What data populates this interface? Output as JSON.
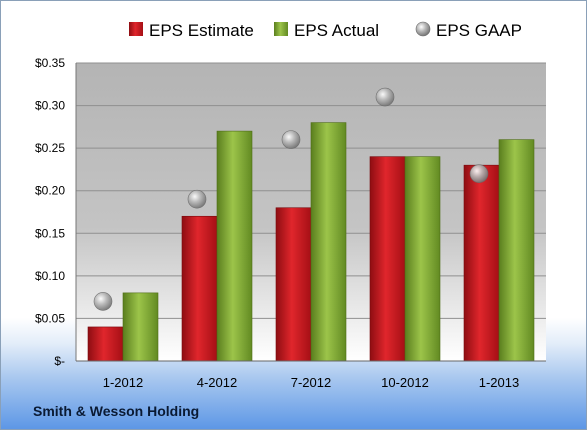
{
  "chart_data": {
    "type": "bar",
    "categories": [
      "1-2012",
      "4-2012",
      "7-2012",
      "10-2012",
      "1-2013"
    ],
    "series": [
      {
        "name": "EPS Estimate",
        "values": [
          0.04,
          0.17,
          0.18,
          0.24,
          0.23
        ],
        "color": "#c0141c"
      },
      {
        "name": "EPS Actual",
        "values": [
          0.08,
          0.27,
          0.28,
          0.24,
          0.26
        ],
        "color": "#78a12e"
      },
      {
        "name": "EPS GAAP",
        "values": [
          0.07,
          0.19,
          0.26,
          0.31,
          0.22
        ],
        "color": "#9a9a9a",
        "marker": "circle"
      }
    ],
    "yticks": [
      "$-",
      "$0.05",
      "$0.10",
      "$0.15",
      "$0.20",
      "$0.25",
      "$0.30",
      "$0.35"
    ],
    "ylim": [
      0,
      0.35
    ],
    "grid": true,
    "legend_position": "top"
  },
  "footer": {
    "company": "Smith & Wesson Holding"
  }
}
